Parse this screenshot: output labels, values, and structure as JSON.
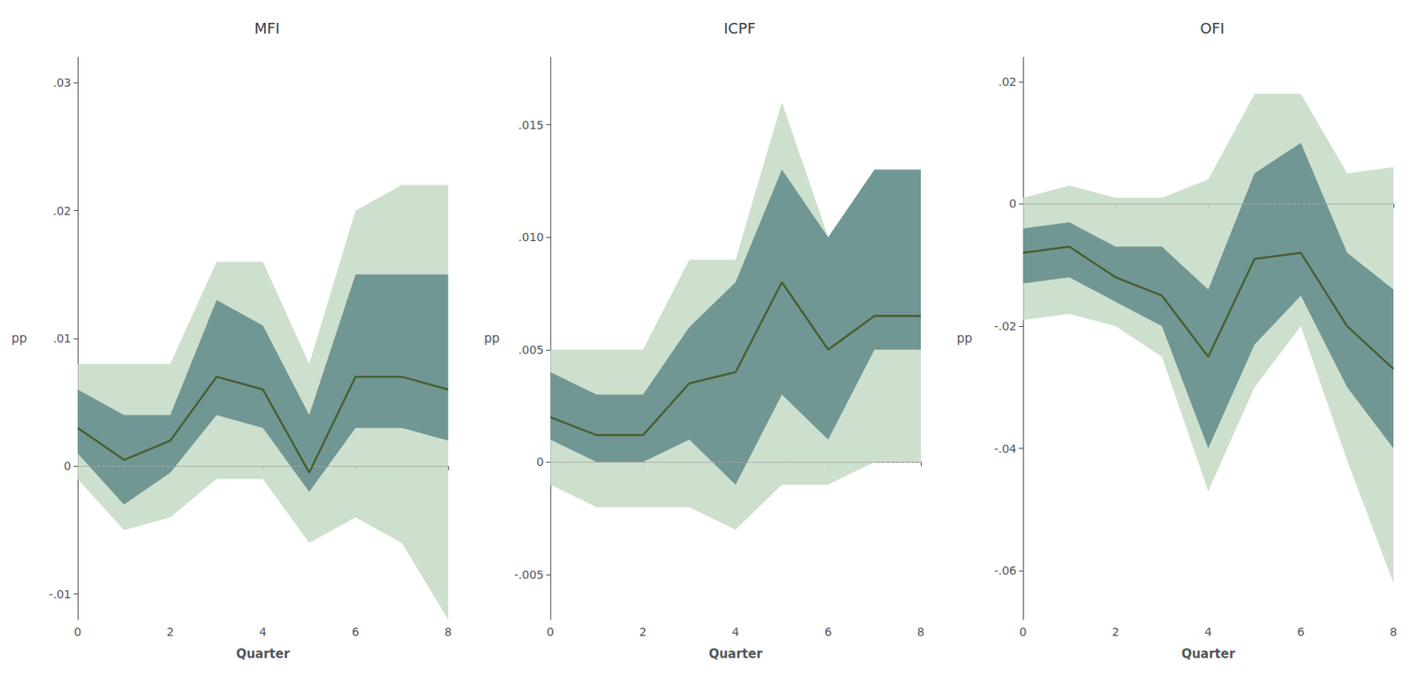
{
  "chart_data": [
    {
      "type": "line",
      "title": "MFI",
      "xlabel": "Quarter",
      "ylabel": "pp",
      "x": [
        0,
        1,
        2,
        3,
        4,
        5,
        6,
        7,
        8
      ],
      "values": [
        0.003,
        0.0005,
        0.002,
        0.007,
        0.006,
        -0.0005,
        0.007,
        0.007,
        0.006
      ],
      "color": "#4a5e2f",
      "bands": [
        {
          "lo": [
            -0.001,
            -0.005,
            -0.004,
            -0.001,
            -0.001,
            -0.006,
            -0.004,
            -0.006,
            -0.012
          ],
          "hi": [
            0.008,
            0.008,
            0.008,
            0.016,
            0.016,
            0.008,
            0.02,
            0.022,
            0.022
          ],
          "color": "#c0d8c0"
        },
        {
          "lo": [
            0.001,
            -0.003,
            -0.0005,
            0.004,
            0.003,
            -0.002,
            0.003,
            0.003,
            0.002
          ],
          "hi": [
            0.006,
            0.004,
            0.004,
            0.013,
            0.011,
            0.004,
            0.015,
            0.015,
            0.015
          ],
          "color": "#5f8a8a"
        }
      ],
      "reference_line": {
        "y": 0,
        "line_style": "dashed",
        "color": "#aaaaaa"
      },
      "xlim": [
        0,
        8
      ],
      "xticks": [
        0,
        2,
        4,
        6,
        8
      ],
      "ylim": [
        -0.012,
        0.032
      ],
      "yticks": [
        {
          "value": -0.01,
          "label": "-.01"
        },
        0,
        {
          "value": 0.01,
          "label": ".01"
        },
        {
          "value": 0.02,
          "label": ".02"
        },
        {
          "value": 0.03,
          "label": ".03"
        }
      ],
      "grid": false
    },
    {
      "type": "line",
      "title": "ICPF",
      "xlabel": "Quarter",
      "ylabel": "pp",
      "x": [
        0,
        1,
        2,
        3,
        4,
        5,
        6,
        7,
        8
      ],
      "values": [
        0.002,
        0.0012,
        0.0012,
        0.0035,
        0.004,
        0.008,
        0.005,
        0.0065,
        0.0065
      ],
      "color": "#4a5e2f",
      "bands": [
        {
          "lo": [
            -0.001,
            -0.002,
            -0.002,
            -0.002,
            -0.003,
            -0.001,
            -0.001,
            0.0,
            0.0
          ],
          "hi": [
            0.005,
            0.005,
            0.005,
            0.009,
            0.009,
            0.016,
            0.01,
            0.013,
            0.013
          ],
          "color": "#c0d8c0"
        },
        {
          "lo": [
            0.001,
            0.0,
            0.0,
            0.001,
            -0.001,
            0.003,
            0.001,
            0.005,
            0.005
          ],
          "hi": [
            0.004,
            0.003,
            0.003,
            0.006,
            0.008,
            0.013,
            0.01,
            0.013,
            0.013
          ],
          "color": "#5f8a8a"
        }
      ],
      "reference_line": {
        "y": 0,
        "line_style": "dashed",
        "color": "#aaaaaa"
      },
      "xlim": [
        0,
        8
      ],
      "xticks": [
        0,
        2,
        4,
        6,
        8
      ],
      "ylim": [
        -0.007,
        0.018
      ],
      "yticks": [
        {
          "value": -0.005,
          "label": "-.005"
        },
        0,
        {
          "value": 0.005,
          "label": ".005"
        },
        {
          "value": 0.01,
          "label": ".010"
        },
        {
          "value": 0.015,
          "label": ".015"
        }
      ],
      "grid": false
    },
    {
      "type": "line",
      "title": "OFI",
      "xlabel": "Quarter",
      "ylabel": "pp",
      "x": [
        0,
        1,
        2,
        3,
        4,
        5,
        6,
        7,
        8
      ],
      "values": [
        -0.008,
        -0.007,
        -0.012,
        -0.015,
        -0.025,
        -0.009,
        -0.008,
        -0.02,
        -0.027
      ],
      "color": "#4a5e2f",
      "bands": [
        {
          "lo": [
            -0.019,
            -0.018,
            -0.02,
            -0.025,
            -0.047,
            -0.03,
            -0.02,
            -0.042,
            -0.062
          ],
          "hi": [
            0.001,
            0.003,
            0.001,
            0.001,
            0.004,
            0.018,
            0.018,
            0.005,
            0.006
          ],
          "color": "#c0d8c0"
        },
        {
          "lo": [
            -0.013,
            -0.012,
            -0.016,
            -0.02,
            -0.04,
            -0.023,
            -0.015,
            -0.03,
            -0.04
          ],
          "hi": [
            -0.004,
            -0.003,
            -0.007,
            -0.007,
            -0.014,
            0.005,
            0.01,
            -0.008,
            -0.014
          ],
          "color": "#5f8a8a"
        }
      ],
      "reference_line": {
        "y": 0,
        "line_style": "dashed",
        "color": "#aaaaaa"
      },
      "xlim": [
        0,
        8
      ],
      "xticks": [
        0,
        2,
        4,
        6,
        8
      ],
      "ylim": [
        -0.068,
        0.024
      ],
      "yticks": [
        {
          "value": -0.06,
          "label": "-.06"
        },
        {
          "value": -0.04,
          "label": "-.04"
        },
        {
          "value": -0.02,
          "label": "-.02"
        },
        0,
        {
          "value": 0.02,
          "label": ".02"
        }
      ],
      "grid": false
    }
  ]
}
